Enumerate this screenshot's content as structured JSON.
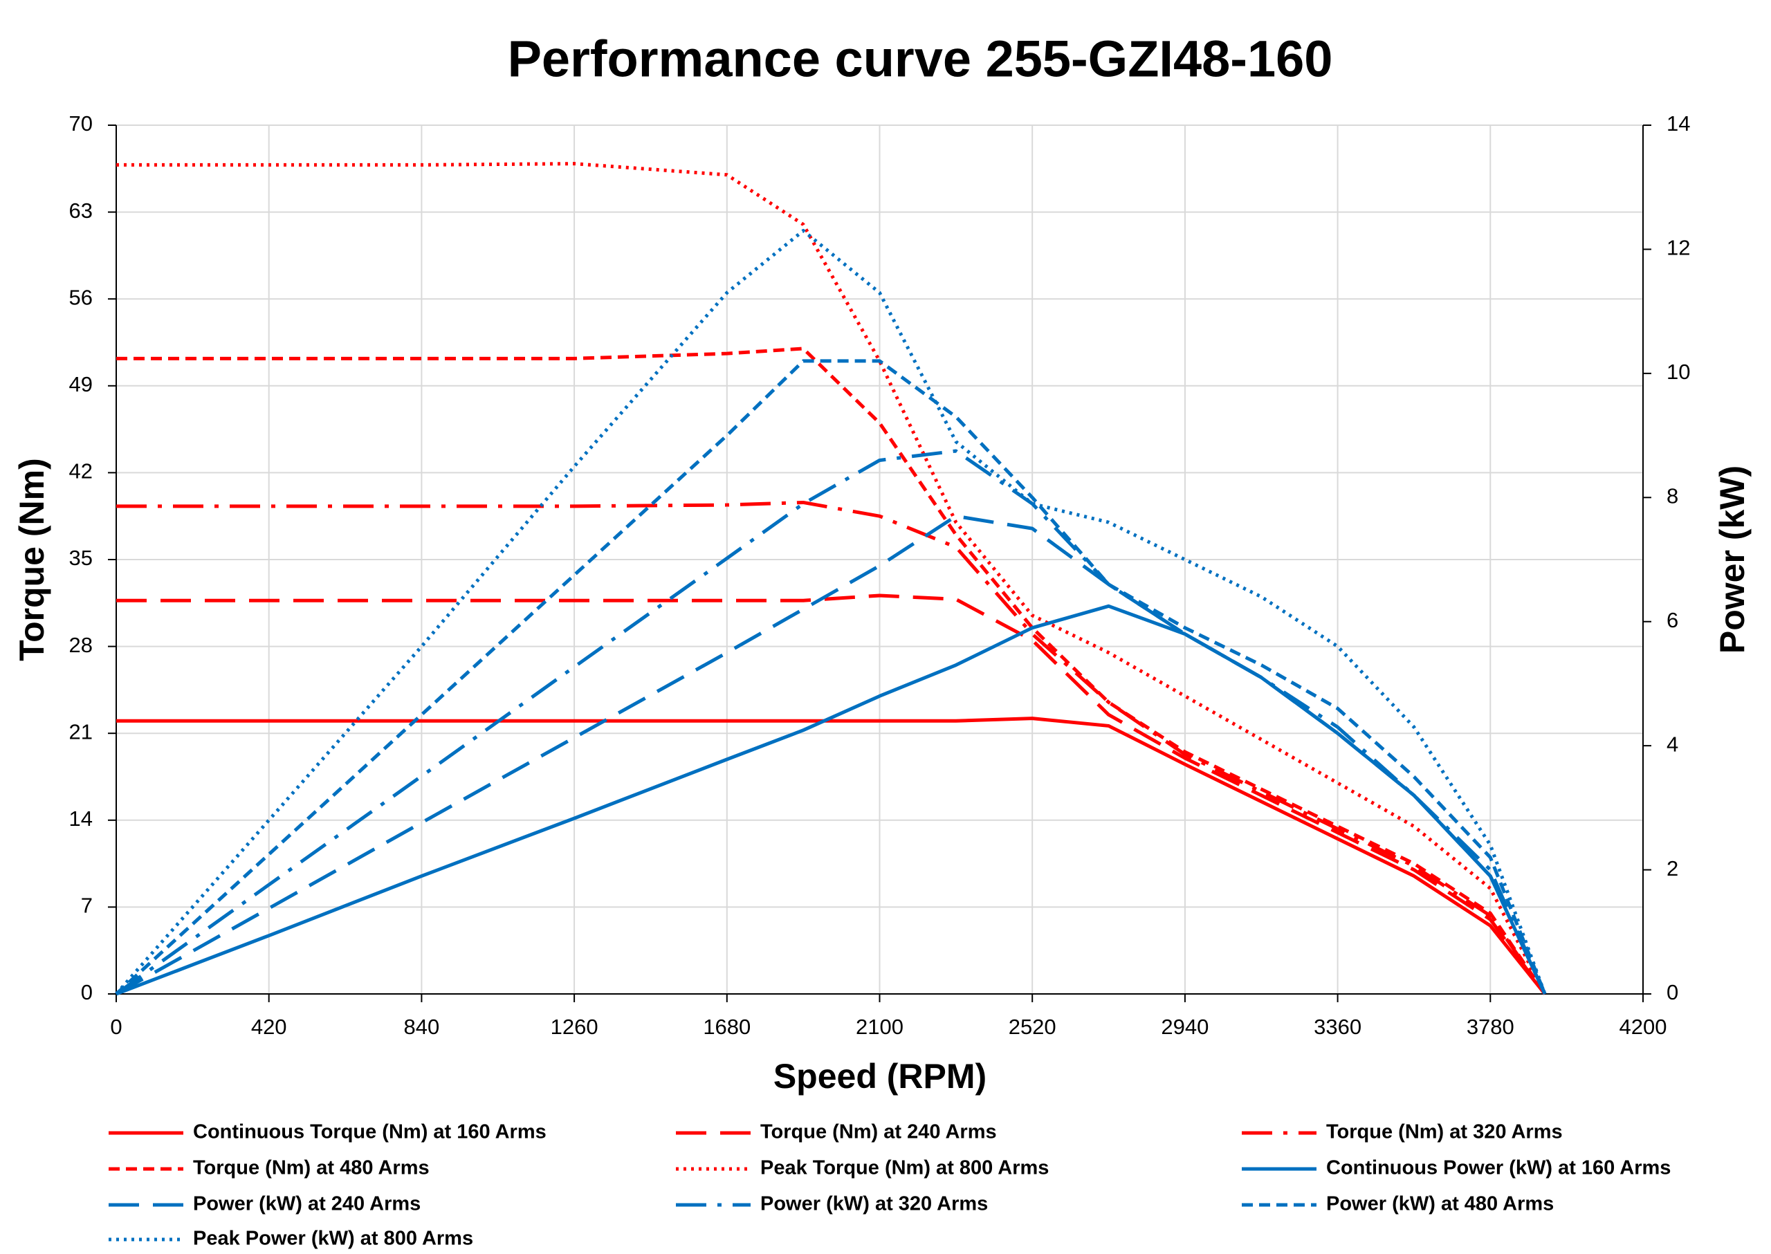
{
  "chart_data": {
    "type": "line",
    "title": "Performance curve 255-GZI48-160",
    "x_label": "Speed (RPM)",
    "y_label": "Torque (Nm)",
    "y2_label": "Power (kW)",
    "x": [
      0,
      420,
      840,
      1260,
      1680,
      1890,
      2100,
      2310,
      2520,
      2730,
      2940,
      3150,
      3360,
      3570,
      3780,
      3930
    ],
    "xlim": [
      0,
      4200
    ],
    "xticks": [
      0,
      420,
      840,
      1260,
      1680,
      2100,
      2520,
      2940,
      3360,
      3780,
      4200
    ],
    "ylim": [
      0,
      70
    ],
    "yticks": [
      0,
      7,
      14,
      21,
      28,
      35,
      42,
      49,
      56,
      63,
      70
    ],
    "y2lim": [
      0,
      14
    ],
    "y2ticks": [
      0,
      2,
      4,
      6,
      8,
      10,
      12,
      14
    ],
    "grid": true,
    "series": [
      {
        "name": "Continuous Torque (Nm) at 160  Arms",
        "color": "#ff0000",
        "dash": "solid",
        "values": [
          22,
          22,
          22,
          22,
          22,
          22,
          22,
          22,
          22.2,
          21.6,
          18.5,
          15.5,
          12.5,
          9.5,
          5.5,
          0
        ]
      },
      {
        "name": "Torque (Nm) at 240 Arms",
        "color": "#ff0000",
        "dash": "long",
        "values": [
          31.7,
          31.7,
          31.7,
          31.7,
          31.7,
          31.7,
          32.1,
          31.8,
          28.5,
          22.5,
          19,
          16,
          13,
          10,
          6,
          0
        ]
      },
      {
        "name": "Torque (Nm) at 320 Arms",
        "color": "#ff0000",
        "dash": "dashdot",
        "values": [
          39.3,
          39.3,
          39.3,
          39.3,
          39.4,
          39.6,
          38.5,
          36,
          29,
          23.5,
          19.3,
          16.3,
          13.3,
          10.3,
          6.3,
          0
        ]
      },
      {
        "name": "Torque (Nm) at 480 Arms",
        "color": "#ff0000",
        "dash": "short",
        "values": [
          51.2,
          51.2,
          51.2,
          51.2,
          51.6,
          52,
          46,
          37,
          29.5,
          23.5,
          19.5,
          16.5,
          13.5,
          10.5,
          6.5,
          0
        ]
      },
      {
        "name": "Peak Torque (Nm) at 800 Arms",
        "color": "#ff0000",
        "dash": "dot",
        "values": [
          66.8,
          66.8,
          66.8,
          66.9,
          66,
          62,
          51,
          38,
          30.5,
          27.5,
          24,
          20.5,
          17,
          13.5,
          8.5,
          0
        ]
      },
      {
        "name": "Continuous Power (kW) at 160 Arms",
        "color": "#0070c0",
        "dash": "solid",
        "axis": "y2",
        "values": [
          0,
          0.94,
          1.9,
          2.83,
          3.78,
          4.25,
          4.8,
          5.3,
          5.9,
          6.25,
          5.8,
          5.1,
          4.2,
          3.2,
          1.9,
          0
        ]
      },
      {
        "name": "Power (kW) at 240 Arms",
        "color": "#0070c0",
        "dash": "long",
        "axis": "y2",
        "values": [
          0,
          1.38,
          2.76,
          4.13,
          5.5,
          6.2,
          6.9,
          7.7,
          7.5,
          6.6,
          5.8,
          5.1,
          4.2,
          3.2,
          1.9,
          0
        ]
      },
      {
        "name": "Power (kW) at 320 Arms",
        "color": "#0070c0",
        "dash": "dashdot",
        "axis": "y2",
        "values": [
          0,
          1.76,
          3.51,
          5.27,
          7.02,
          7.9,
          8.6,
          8.75,
          7.9,
          6.6,
          5.8,
          5.1,
          4.3,
          3.2,
          2,
          0
        ]
      },
      {
        "name": "Power (kW) at 480 Arms",
        "color": "#0070c0",
        "dash": "short",
        "axis": "y2",
        "values": [
          0,
          2.25,
          4.5,
          6.75,
          9,
          10.2,
          10.2,
          9.3,
          8,
          6.6,
          5.9,
          5.3,
          4.6,
          3.5,
          2.2,
          0
        ]
      },
      {
        "name": "Peak Power (kW) at 800 Arms",
        "color": "#0070c0",
        "dash": "dot",
        "axis": "y2",
        "values": [
          0,
          2.8,
          5.6,
          8.5,
          11.3,
          12.3,
          11.3,
          8.9,
          7.9,
          7.6,
          7,
          6.4,
          5.6,
          4.3,
          2.4,
          0
        ]
      }
    ]
  }
}
